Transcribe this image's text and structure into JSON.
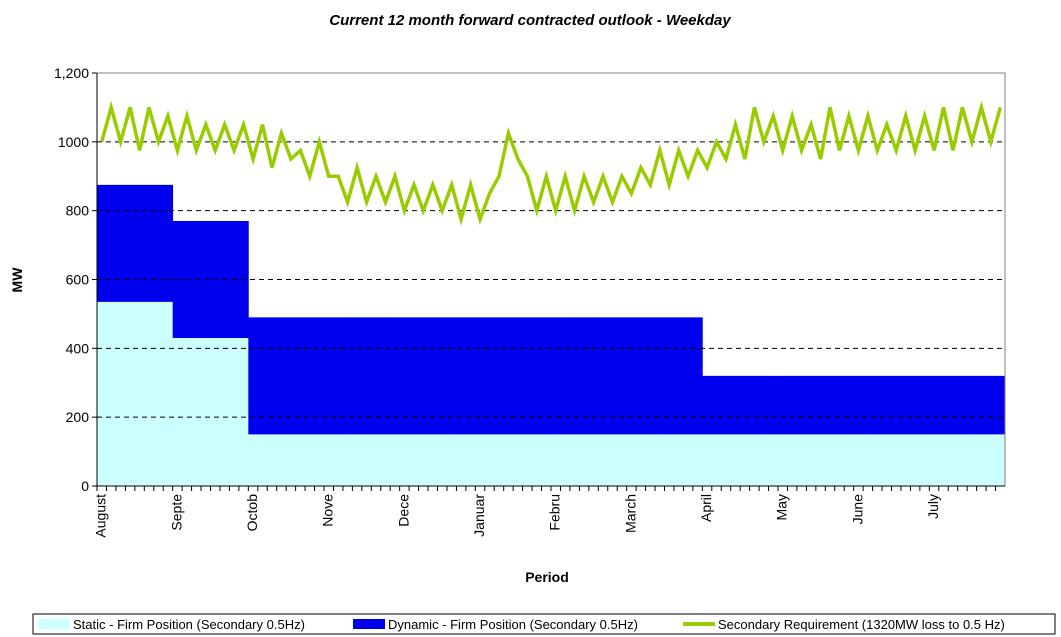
{
  "chart_data": {
    "type": "stacked-step-area-line",
    "title": "Current 12 month forward contracted outlook - Weekday",
    "y_label": "MW",
    "x_label": "Period",
    "categories": [
      "August",
      null,
      null,
      null,
      null,
      null,
      null,
      null,
      "Septe",
      null,
      null,
      null,
      null,
      null,
      null,
      null,
      "Octob",
      null,
      null,
      null,
      null,
      null,
      null,
      null,
      "Nove",
      null,
      null,
      null,
      null,
      null,
      null,
      null,
      "Dece",
      null,
      null,
      null,
      null,
      null,
      null,
      null,
      "Januar",
      null,
      null,
      null,
      null,
      null,
      null,
      null,
      "Febru",
      null,
      null,
      null,
      null,
      null,
      null,
      null,
      "March",
      null,
      null,
      null,
      null,
      null,
      null,
      null,
      "April",
      null,
      null,
      null,
      null,
      null,
      null,
      null,
      "May",
      null,
      null,
      null,
      null,
      null,
      null,
      null,
      "June",
      null,
      null,
      null,
      null,
      null,
      null,
      null,
      "July",
      null,
      null,
      null,
      null,
      null,
      null,
      null
    ],
    "series": [
      {
        "name": "Static - Firm Position (Secondary 0.5Hz)",
        "color": "#ccffff",
        "kind": "area",
        "values": [
          535,
          535,
          535,
          535,
          535,
          535,
          535,
          535,
          430,
          430,
          430,
          430,
          430,
          430,
          430,
          430,
          150,
          150,
          150,
          150,
          150,
          150,
          150,
          150,
          150,
          150,
          150,
          150,
          150,
          150,
          150,
          150,
          150,
          150,
          150,
          150,
          150,
          150,
          150,
          150,
          150,
          150,
          150,
          150,
          150,
          150,
          150,
          150,
          150,
          150,
          150,
          150,
          150,
          150,
          150,
          150,
          150,
          150,
          150,
          150,
          150,
          150,
          150,
          150,
          150,
          150,
          150,
          150,
          150,
          150,
          150,
          150,
          150,
          150,
          150,
          150,
          150,
          150,
          150,
          150,
          150,
          150,
          150,
          150,
          150,
          150,
          150,
          150,
          150,
          150,
          150,
          150,
          150,
          150,
          150,
          150
        ]
      },
      {
        "name": "Dynamic - Firm Position (Secondary 0.5Hz)",
        "color": "#0000ee",
        "kind": "area",
        "values": [
          340,
          340,
          340,
          340,
          340,
          340,
          340,
          340,
          340,
          340,
          340,
          340,
          340,
          340,
          340,
          340,
          340,
          340,
          340,
          340,
          340,
          340,
          340,
          340,
          340,
          340,
          340,
          340,
          340,
          340,
          340,
          340,
          340,
          340,
          340,
          340,
          340,
          340,
          340,
          340,
          340,
          340,
          340,
          340,
          340,
          340,
          340,
          340,
          340,
          340,
          340,
          340,
          340,
          340,
          340,
          340,
          340,
          340,
          340,
          340,
          340,
          340,
          340,
          340,
          170,
          170,
          170,
          170,
          170,
          170,
          170,
          170,
          170,
          170,
          170,
          170,
          170,
          170,
          170,
          170,
          170,
          170,
          170,
          170,
          170,
          170,
          170,
          170,
          170,
          170,
          170,
          170,
          170,
          170,
          170,
          170
        ]
      },
      {
        "name": "Secondary Requirement (1320MW loss to 0.5 Hz)",
        "color": "#99cc00",
        "kind": "line",
        "values": [
          1000,
          1100,
          1000,
          1100,
          975,
          1100,
          1000,
          1075,
          975,
          1075,
          975,
          1050,
          975,
          1050,
          975,
          1050,
          950,
          1050,
          925,
          1025,
          950,
          975,
          900,
          1000,
          900,
          900,
          825,
          925,
          825,
          900,
          825,
          900,
          800,
          875,
          800,
          875,
          800,
          875,
          775,
          875,
          775,
          850,
          900,
          1025,
          950,
          900,
          800,
          900,
          800,
          900,
          800,
          900,
          825,
          900,
          825,
          900,
          850,
          925,
          875,
          975,
          875,
          975,
          900,
          975,
          925,
          1000,
          950,
          1050,
          950,
          1100,
          1000,
          1075,
          975,
          1075,
          975,
          1050,
          950,
          1100,
          975,
          1075,
          975,
          1075,
          975,
          1050,
          975,
          1075,
          975,
          1075,
          975,
          1100,
          975,
          1100,
          1000,
          1100,
          1000,
          1100
        ]
      }
    ],
    "ylim": [
      0,
      1200
    ],
    "yticks": [
      0,
      200,
      400,
      600,
      800,
      1000,
      {
        "value": 1200,
        "label": "1,200"
      },
      {
        "value": 1000,
        "label": "1,000"
      }
    ],
    "grid": true
  }
}
